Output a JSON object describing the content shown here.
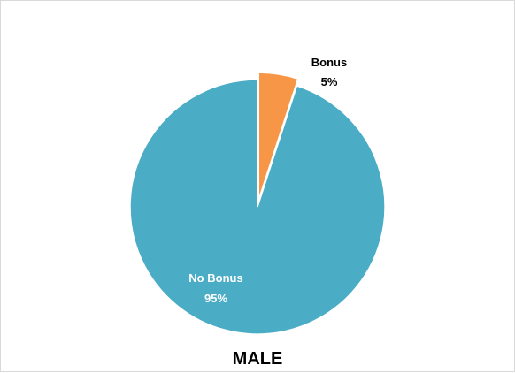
{
  "chart_data": {
    "type": "pie",
    "title": "MALE",
    "categories": [
      "No Bonus",
      "Bonus"
    ],
    "values": [
      95,
      5
    ],
    "labels": [
      {
        "name": "No Bonus",
        "percent": "95%"
      },
      {
        "name": "Bonus",
        "percent": "5%"
      }
    ],
    "colors": [
      "#4bacc6",
      "#f79646"
    ],
    "exploded": "Bonus",
    "legend": "none",
    "start_angle_deg": 0
  }
}
